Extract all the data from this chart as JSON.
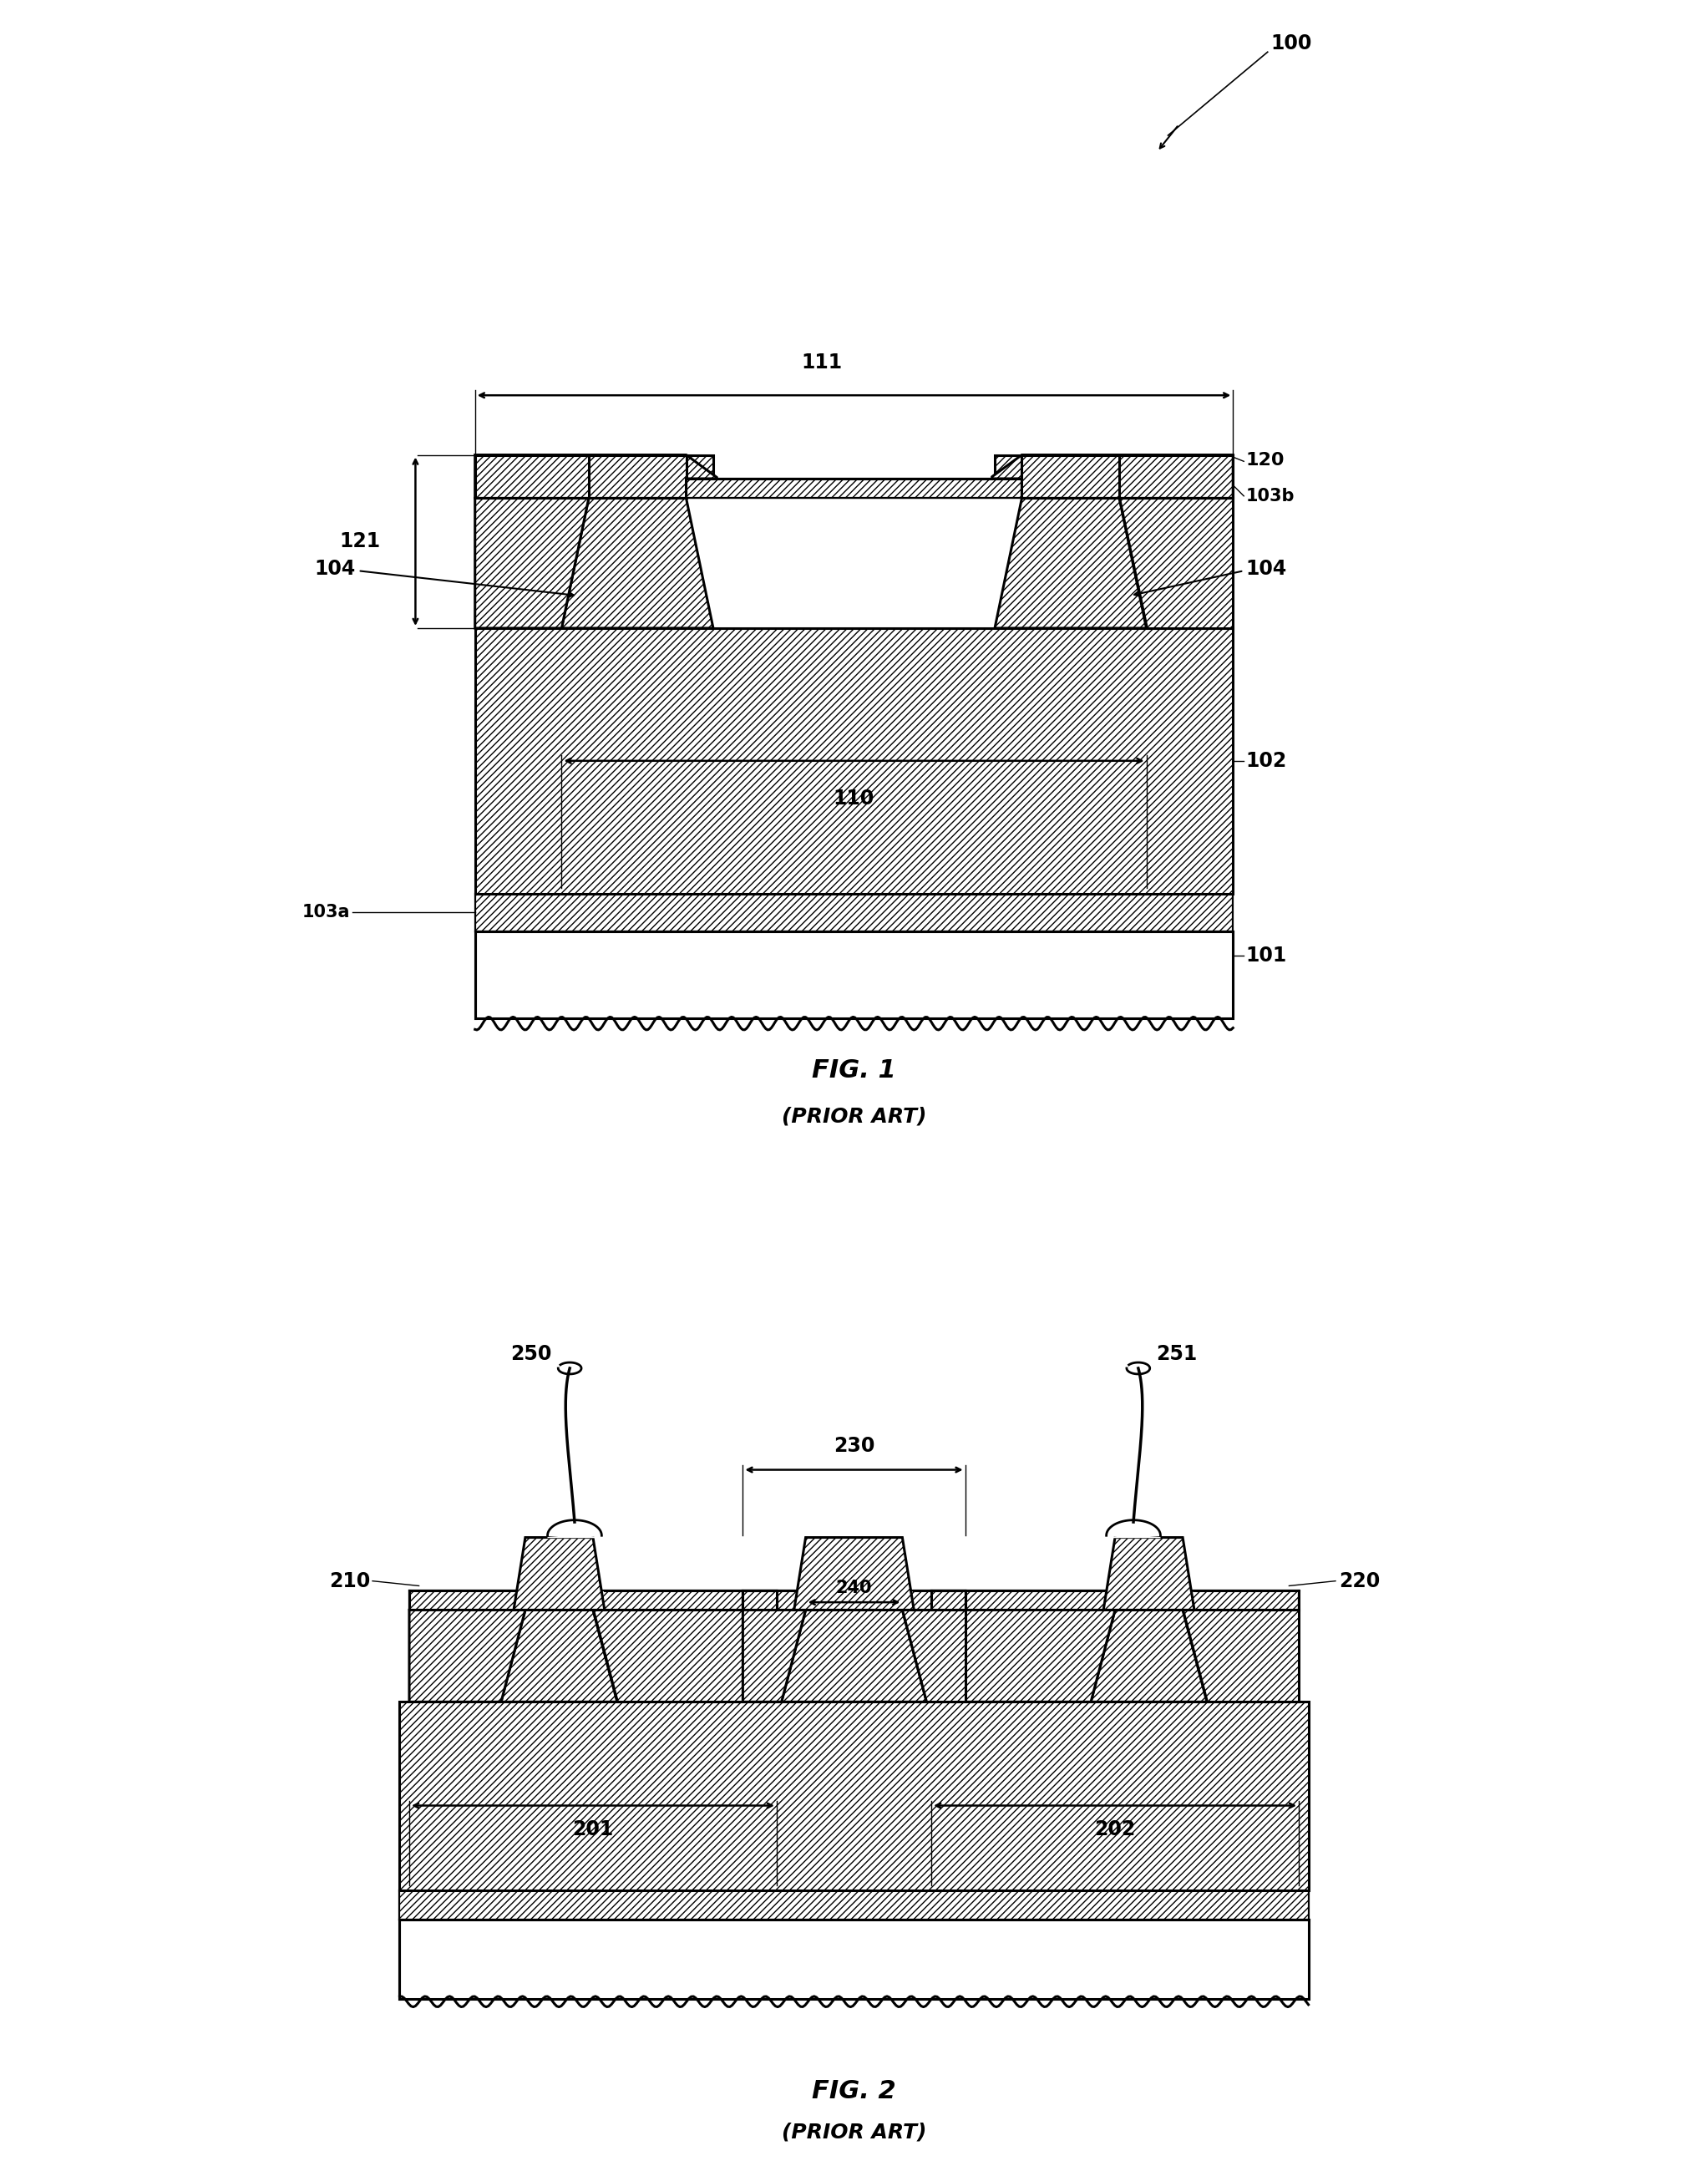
{
  "bg_color": "#ffffff",
  "line_color": "#000000",
  "fig1_title": "FIG. 1",
  "fig1_subtitle": "(PRIOR ART)",
  "fig2_title": "FIG. 2",
  "fig2_subtitle": "(PRIOR ART)"
}
